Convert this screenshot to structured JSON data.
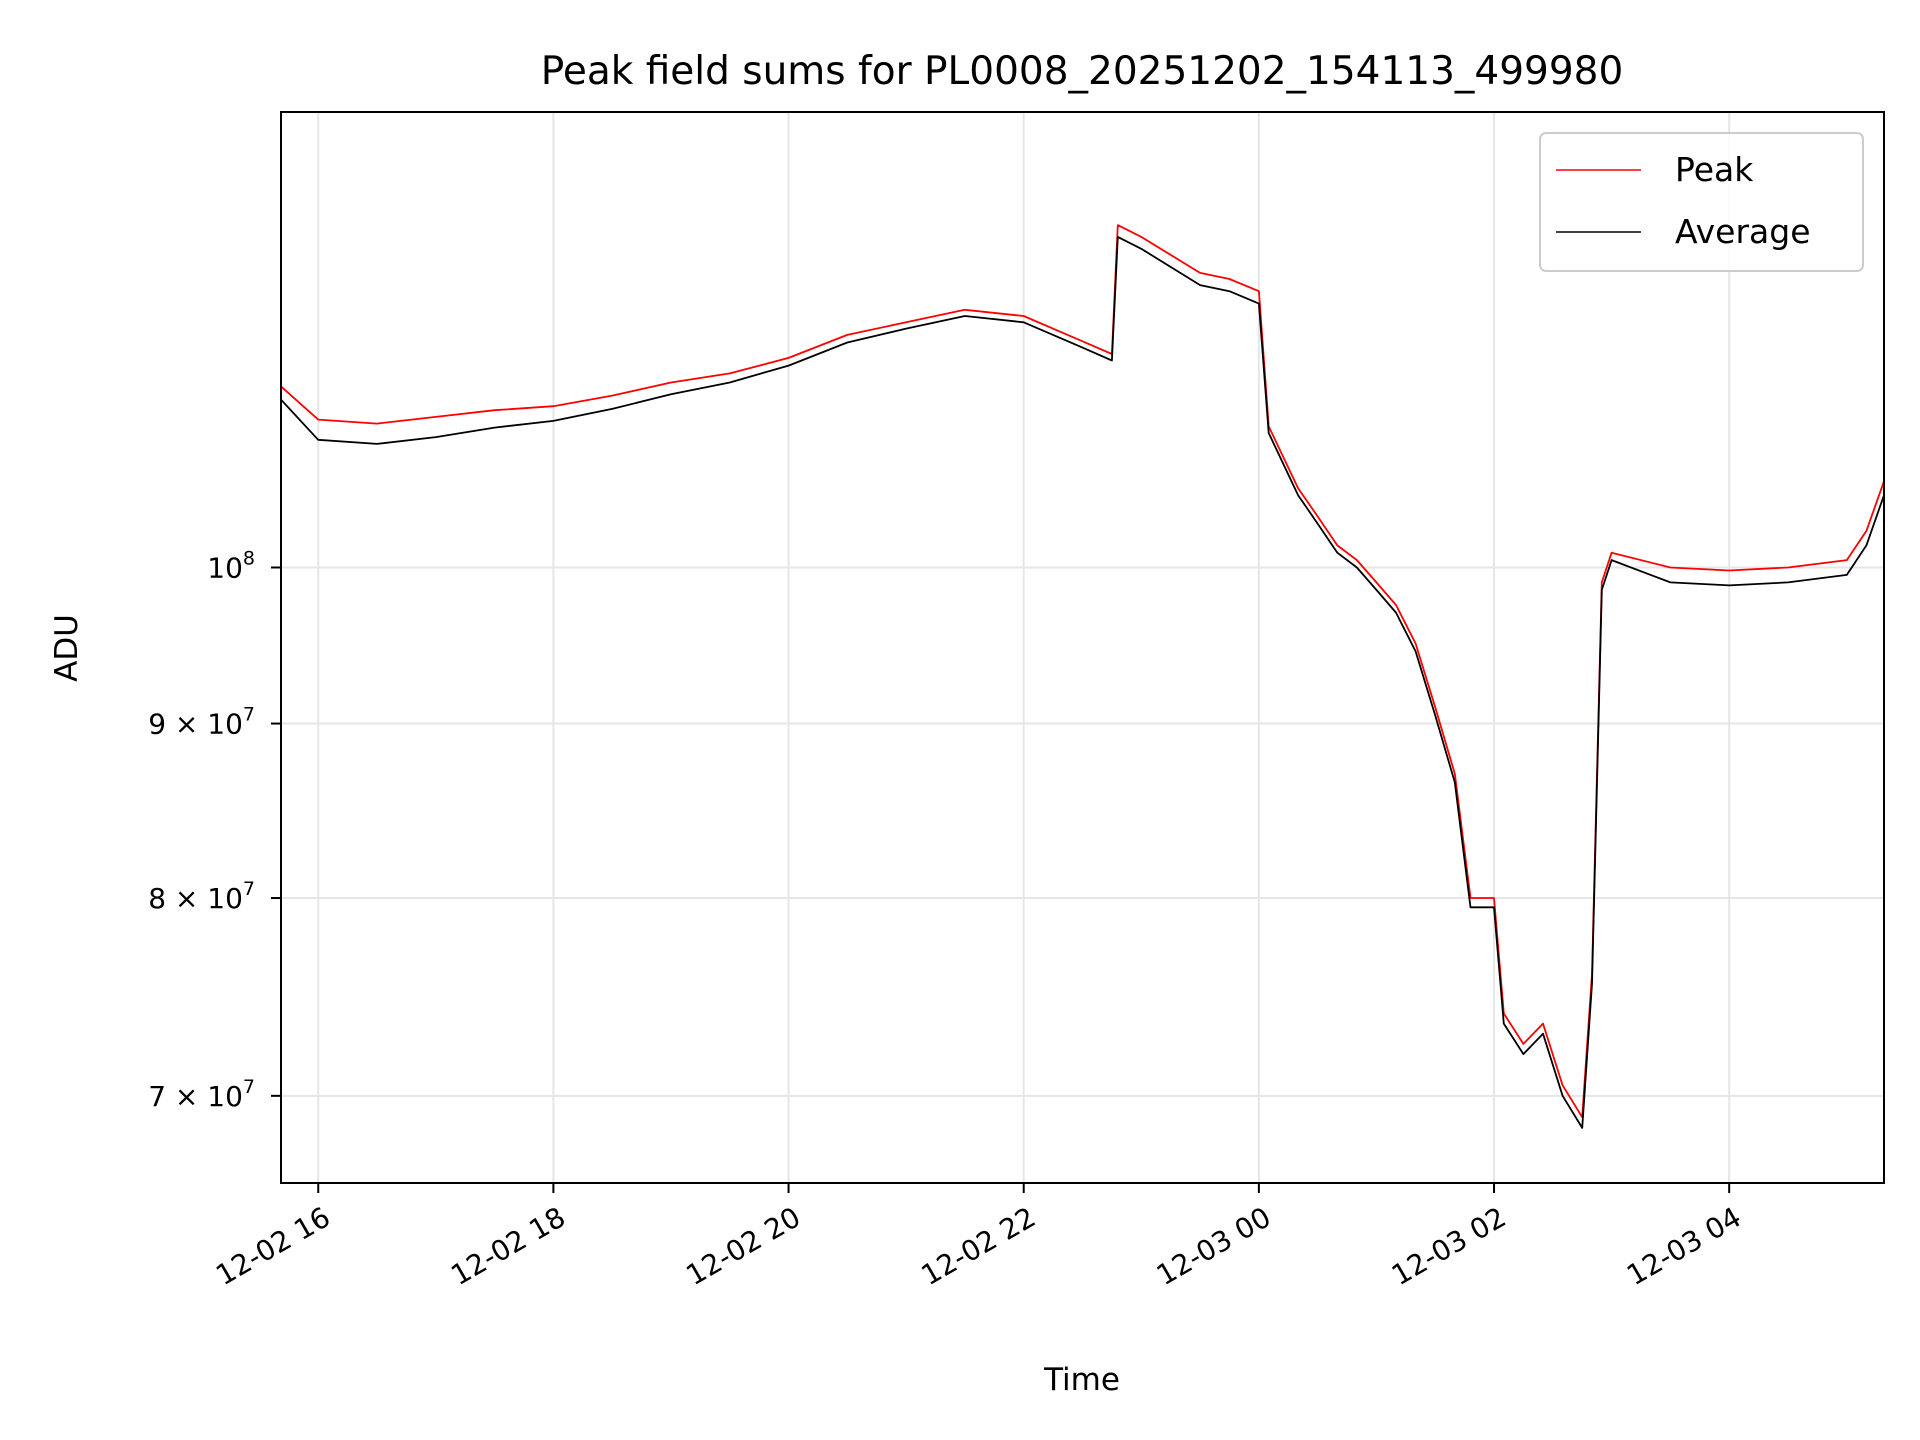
{
  "chart_data": {
    "type": "line",
    "title": "Peak field sums for PL0008_20251202_154113_499980",
    "xlabel": "Time",
    "ylabel": "ADU",
    "yscale": "log",
    "grid": true,
    "legend_position": "top-right",
    "xlim": [
      "12-02 15:41",
      "12-03 05:19"
    ],
    "ylim": [
      66000000,
      136000000
    ],
    "x_ticks": [
      {
        "label": "12-02 16",
        "value": "12-02 16:00"
      },
      {
        "label": "12-02 18",
        "value": "12-02 18:00"
      },
      {
        "label": "12-02 20",
        "value": "12-02 20:00"
      },
      {
        "label": "12-02 22",
        "value": "12-02 22:00"
      },
      {
        "label": "12-03 00",
        "value": "12-03 00:00"
      },
      {
        "label": "12-03 02",
        "value": "12-03 02:00"
      },
      {
        "label": "12-03 04",
        "value": "12-03 04:00"
      }
    ],
    "y_ticks": [
      {
        "label": "7×10⁷",
        "mantissa": "7 × 10",
        "exponent": "7",
        "value": 70000000
      },
      {
        "label": "8×10⁷",
        "mantissa": "8 × 10",
        "exponent": "7",
        "value": 80000000
      },
      {
        "label": "9×10⁷",
        "mantissa": "9 × 10",
        "exponent": "7",
        "value": 90000000
      },
      {
        "label": "10⁸",
        "mantissa": "10",
        "exponent": "8",
        "value": 100000000
      }
    ],
    "series": [
      {
        "name": "Peak",
        "color": "#ff0000",
        "x": [
          "12-02 15:41",
          "12-02 16:00",
          "12-02 16:30",
          "12-02 17:00",
          "12-02 17:30",
          "12-02 18:00",
          "12-02 18:30",
          "12-02 19:00",
          "12-02 19:30",
          "12-02 20:00",
          "12-02 20:30",
          "12-02 21:00",
          "12-02 21:30",
          "12-02 22:00",
          "12-02 22:30",
          "12-02 22:45",
          "12-02 22:48",
          "12-02 23:00",
          "12-02 23:30",
          "12-02 23:45",
          "12-03 00:00",
          "12-03 00:05",
          "12-03 00:20",
          "12-03 00:30",
          "12-03 00:40",
          "12-03 00:50",
          "12-03 01:00",
          "12-03 01:10",
          "12-03 01:20",
          "12-03 01:30",
          "12-03 01:40",
          "12-03 01:48",
          "12-03 02:00",
          "12-03 02:05",
          "12-03 02:15",
          "12-03 02:25",
          "12-03 02:35",
          "12-03 02:45",
          "12-03 02:50",
          "12-03 02:55",
          "12-03 03:00",
          "12-03 03:30",
          "12-03 04:00",
          "12-03 04:30",
          "12-03 05:00",
          "12-03 05:10",
          "12-03 05:19"
        ],
        "values": [
          113000000,
          110500000,
          110200000,
          110700000,
          111200000,
          111500000,
          112300000,
          113300000,
          114000000,
          115200000,
          117000000,
          118000000,
          119000000,
          118500000,
          116500000,
          115500000,
          126000000,
          125000000,
          122000000,
          121500000,
          120500000,
          110000000,
          105500000,
          103500000,
          101500000,
          100500000,
          99000000,
          97500000,
          95000000,
          91000000,
          87000000,
          80000000,
          80000000,
          74000000,
          72500000,
          73500000,
          70500000,
          69000000,
          76000000,
          99000000,
          101000000,
          100000000,
          99800000,
          100000000,
          100500000,
          102500000,
          106000000
        ]
      },
      {
        "name": "Average",
        "color": "#000000",
        "x": [
          "12-02 15:41",
          "12-02 16:00",
          "12-02 16:30",
          "12-02 17:00",
          "12-02 17:30",
          "12-02 18:00",
          "12-02 18:30",
          "12-02 19:00",
          "12-02 19:30",
          "12-02 20:00",
          "12-02 20:30",
          "12-02 21:00",
          "12-02 21:30",
          "12-02 22:00",
          "12-02 22:30",
          "12-02 22:45",
          "12-02 22:48",
          "12-02 23:00",
          "12-02 23:30",
          "12-02 23:45",
          "12-03 00:00",
          "12-03 00:05",
          "12-03 00:20",
          "12-03 00:30",
          "12-03 00:40",
          "12-03 00:50",
          "12-03 01:00",
          "12-03 01:10",
          "12-03 01:20",
          "12-03 01:30",
          "12-03 01:40",
          "12-03 01:48",
          "12-03 02:00",
          "12-03 02:05",
          "12-03 02:15",
          "12-03 02:25",
          "12-03 02:35",
          "12-03 02:45",
          "12-03 02:50",
          "12-03 02:55",
          "12-03 03:00",
          "12-03 03:30",
          "12-03 04:00",
          "12-03 04:30",
          "12-03 05:00",
          "12-03 05:10",
          "12-03 05:19"
        ],
        "values": [
          112000000,
          109000000,
          108700000,
          109200000,
          109900000,
          110400000,
          111300000,
          112400000,
          113300000,
          114600000,
          116400000,
          117500000,
          118500000,
          118000000,
          116000000,
          115000000,
          125000000,
          124000000,
          121000000,
          120500000,
          119500000,
          109500000,
          105000000,
          103000000,
          101000000,
          100000000,
          98500000,
          97000000,
          94500000,
          90500000,
          86500000,
          79500000,
          79500000,
          73500000,
          72000000,
          73000000,
          70000000,
          68500000,
          75500000,
          98500000,
          100500000,
          99000000,
          98800000,
          99000000,
          99500000,
          101500000,
          105000000
        ]
      }
    ]
  }
}
